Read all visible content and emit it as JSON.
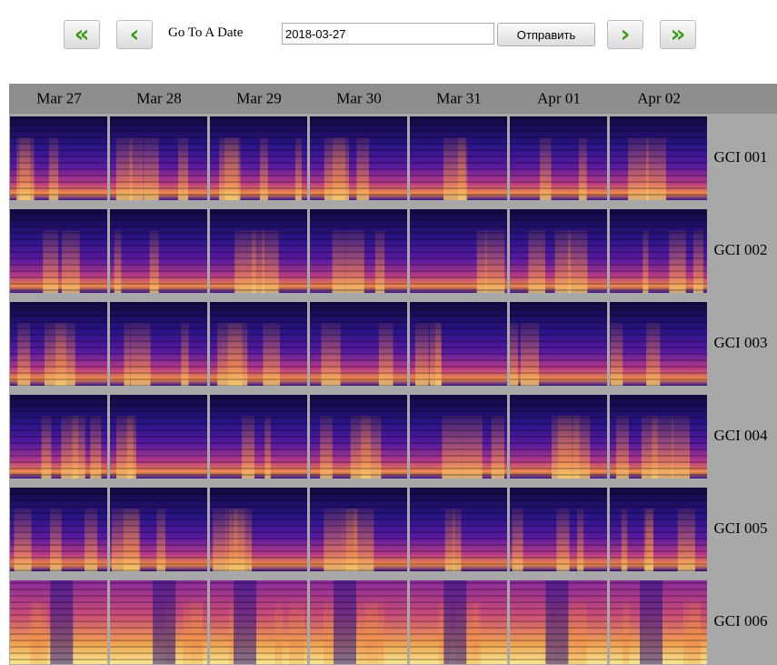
{
  "nav": {
    "first": "«",
    "prev": "‹",
    "label": "Go To A Date",
    "date_input": "2018-03-27",
    "submit": "Отправить",
    "next": "›",
    "last": "»"
  },
  "grid": {
    "columns": [
      "Mar 27",
      "Mar 28",
      "Mar 29",
      "Mar 30",
      "Mar 31",
      "Apr 01",
      "Apr 02"
    ],
    "rows": [
      "GCI 001",
      "GCI 002",
      "GCI 003",
      "GCI 004",
      "GCI 005",
      "GCI 006"
    ]
  }
}
